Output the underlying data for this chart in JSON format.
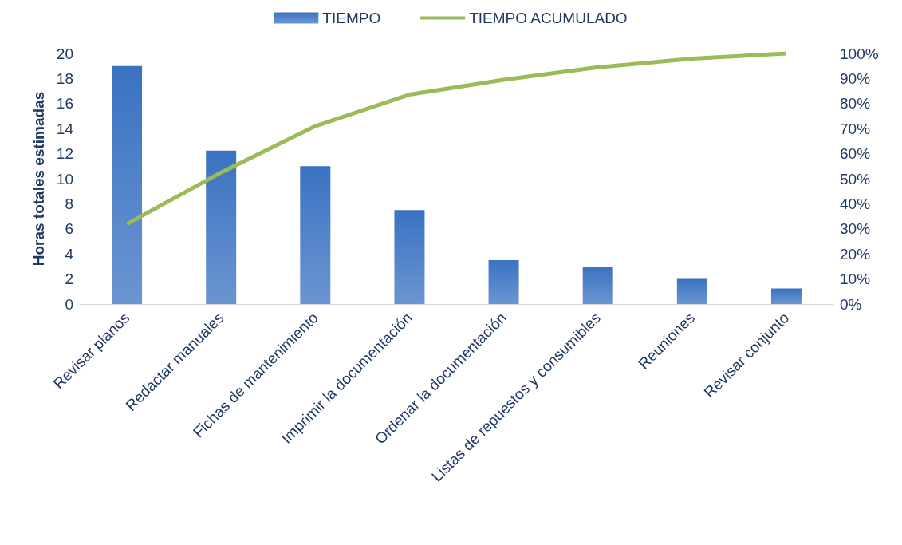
{
  "chart_data": {
    "type": "bar",
    "ylabel": "Horas totales estimadas",
    "categories": [
      "Revisar planos",
      "Redactar manuales",
      "Fichas de mantenimiento",
      "Imprimir la documentación",
      "Ordenar la documentación",
      "Listas de repuestos y consumibles",
      "Reuniones",
      "Revisar conjunto"
    ],
    "series": [
      {
        "name": "TIEMPO",
        "color": "#3a72c2",
        "values": [
          19,
          12.25,
          11,
          7.5,
          3.5,
          3,
          2,
          1.25
        ]
      },
      {
        "name": "TIEMPO ACUMULADO",
        "type": "line",
        "axis": "y2",
        "color": "#9bbb59",
        "values": [
          31.9,
          52.5,
          71.0,
          83.6,
          89.5,
          94.5,
          97.9,
          100
        ]
      }
    ],
    "ylim": [
      0,
      20
    ],
    "yticks": [
      0,
      2,
      4,
      6,
      8,
      10,
      12,
      14,
      16,
      18,
      20
    ],
    "y2lim": [
      0,
      100
    ],
    "y2ticks": [
      {
        "value": 0,
        "label": "0%"
      },
      {
        "value": 10,
        "label": "10%"
      },
      {
        "value": 20,
        "label": "20%"
      },
      {
        "value": 30,
        "label": "30%"
      },
      {
        "value": 40,
        "label": "40%"
      },
      {
        "value": 50,
        "label": "50%"
      },
      {
        "value": 60,
        "label": "60%"
      },
      {
        "value": 70,
        "label": "70%"
      },
      {
        "value": 80,
        "label": "80%"
      },
      {
        "value": 90,
        "label": "90%"
      },
      {
        "value": 100,
        "label": "100%"
      }
    ],
    "grid": false,
    "legend": "top",
    "marker": "none"
  }
}
